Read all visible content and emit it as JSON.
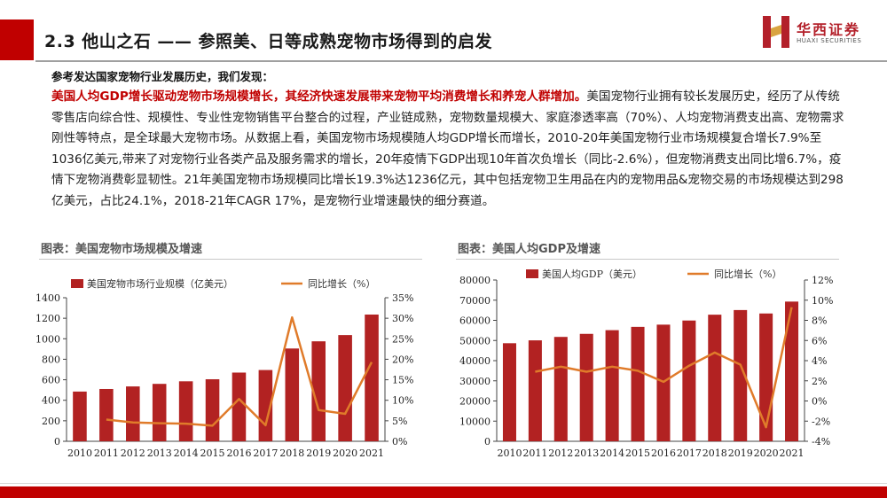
{
  "header": {
    "title": "2.3 他山之石 —— 参照美、日等成熟宠物市场得到的启发",
    "logo_cn": "华西证券",
    "logo_en": "HUAXI SECURITIES",
    "brand_color": "#c00000"
  },
  "intro": {
    "heading": "参考发达国家宠物行业发展历史，我们发现：",
    "highlight": "美国人均GDP增长驱动宠物市场规模增长，其经济快速发展带来宠物平均消费增长和养宠人群增加。",
    "body": "美国宠物行业拥有较长发展历史，经历了从传统零售店向综合性、规模性、专业性宠物销售平台整合的过程，产业链成熟，宠物数量规模大、家庭渗透率高（70%）、人均宠物消费支出高、宠物需求刚性等特点，是全球最大宠物市场。从数据上看，美国宠物市场规模随人均GDP增长而增长，2010-20年美国宠物行业市场规模复合增长7.9%至1036亿美元,带来了对宠物行业各类产品及服务需求的增长，20年疫情下GDP出现10年首次负增长（同比-2.6%），但宠物消费支出同比增6.7%，疫情下宠物消费彰显韧性。21年美国宠物市场规模同比增长19.3%达1236亿元，其中包括宠物卫生用品在内的宠物用品&宠物交易的市场规模达到298亿美元，占比24.1%，2018-21年CAGR 17%，是宠物行业增速最快的细分赛道。"
  },
  "charts": {
    "left_caption": "图表：美国宠物市场规模及增速",
    "right_caption": "图表：美国人均GDP及增速"
  },
  "chart_data": [
    {
      "type": "bar",
      "categories": [
        "2010",
        "2011",
        "2012",
        "2013",
        "2014",
        "2015",
        "2016",
        "2017",
        "2018",
        "2019",
        "2020",
        "2021"
      ],
      "series": [
        {
          "name": "美国宠物市场行业规模（亿美元）",
          "type": "bar",
          "axis": "left",
          "color": "#b22222",
          "values": [
            485,
            510,
            535,
            560,
            585,
            605,
            670,
            695,
            905,
            975,
            1036,
            1236
          ]
        },
        {
          "name": "同比增长（%）",
          "type": "line",
          "axis": "right",
          "color": "#e07b2a",
          "values": [
            null,
            5.3,
            4.6,
            4.4,
            4.3,
            3.8,
            10.3,
            3.9,
            30.2,
            7.6,
            6.7,
            19.3
          ]
        }
      ],
      "ylim_left": [
        0,
        1400
      ],
      "yticks_left": [
        "0",
        "200",
        "400",
        "600",
        "800",
        "1000",
        "1200",
        "1400"
      ],
      "ylim_right": [
        0,
        35
      ],
      "yticks_right": [
        "0%",
        "5%",
        "10%",
        "15%",
        "20%",
        "25%",
        "30%",
        "35%"
      ],
      "legend": "top"
    },
    {
      "type": "bar",
      "categories": [
        "2010",
        "2011",
        "2012",
        "2013",
        "2014",
        "2015",
        "2016",
        "2017",
        "2018",
        "2019",
        "2020",
        "2021"
      ],
      "series": [
        {
          "name": "美国人均GDP（美元）",
          "type": "bar",
          "axis": "left",
          "color": "#b22222",
          "values": [
            48650,
            50070,
            51780,
            53290,
            55120,
            56760,
            57860,
            59910,
            62800,
            65100,
            63400,
            69300
          ]
        },
        {
          "name": "同比增长（%）",
          "type": "line",
          "axis": "right",
          "color": "#e07b2a",
          "values": [
            null,
            2.9,
            3.4,
            2.9,
            3.4,
            3.0,
            1.9,
            3.5,
            4.8,
            3.6,
            -2.6,
            9.3
          ]
        }
      ],
      "ylim_left": [
        0,
        80000
      ],
      "yticks_left": [
        "0",
        "10000",
        "20000",
        "30000",
        "40000",
        "50000",
        "60000",
        "70000",
        "80000"
      ],
      "ylim_right": [
        -4,
        12
      ],
      "yticks_right": [
        "-4%",
        "-2%",
        "0%",
        "2%",
        "4%",
        "6%",
        "8%",
        "10%",
        "12%"
      ],
      "legend": "top"
    }
  ]
}
